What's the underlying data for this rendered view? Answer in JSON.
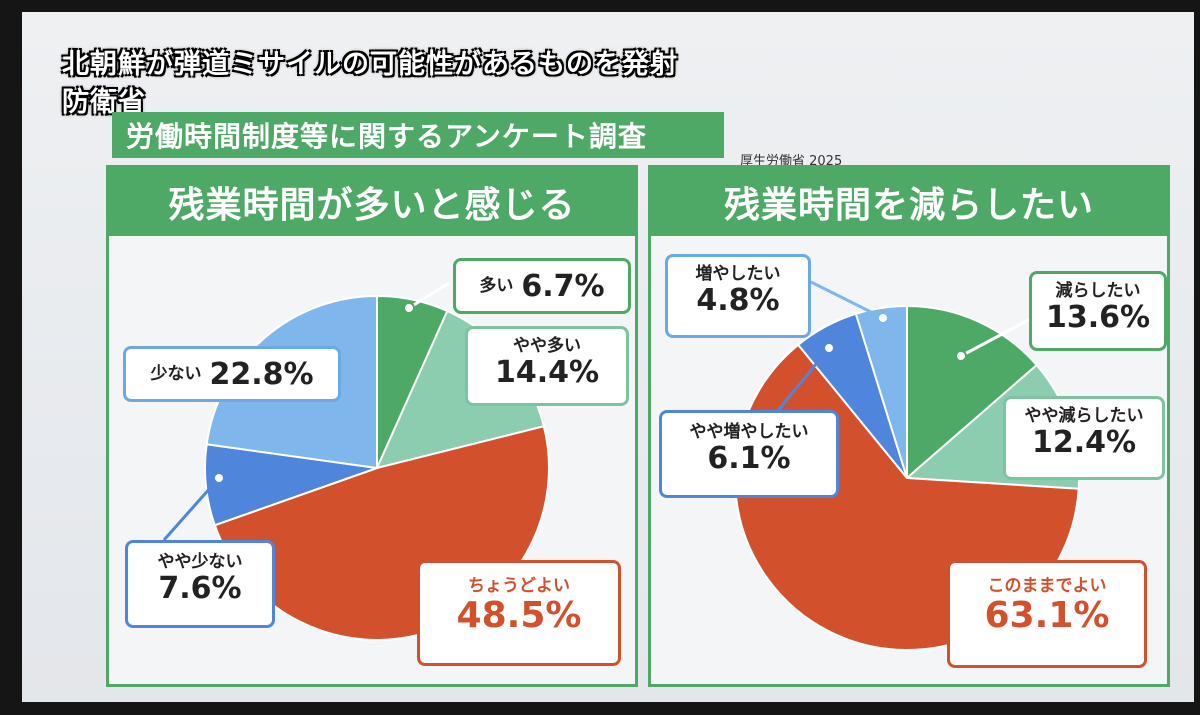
{
  "news": {
    "line1": "北朝鮮が弾道ミサイルの可能性があるものを発射",
    "line2": "防衛省"
  },
  "survey_title": "労働時間制度等に関するアンケート調査",
  "source": "厚生労働省 2025",
  "colors": {
    "green": "#4ea866",
    "light_green": "#8ccdb0",
    "red": "#d2502c",
    "light_blue": "#7fb6ec",
    "blue": "#4f86db"
  },
  "chart_data": [
    {
      "type": "pie",
      "title": "残業時間が多いと感じる",
      "slices": [
        {
          "label": "多い",
          "value": 6.7,
          "display": "6.7%",
          "color": "#4ea866"
        },
        {
          "label": "やや多い",
          "value": 14.4,
          "display": "14.4%",
          "color": "#8ccdb0"
        },
        {
          "label": "ちょうどよい",
          "value": 48.5,
          "display": "48.5%",
          "color": "#d2502c"
        },
        {
          "label": "やや少ない",
          "value": 7.6,
          "display": "7.6%",
          "color": "#4f86db"
        },
        {
          "label": "少ない",
          "value": 22.8,
          "display": "22.8%",
          "color": "#7fb6ec"
        }
      ]
    },
    {
      "type": "pie",
      "title": "残業時間を減らしたい",
      "slices": [
        {
          "label": "減らしたい",
          "value": 13.6,
          "display": "13.6%",
          "color": "#4ea866"
        },
        {
          "label": "やや減らしたい",
          "value": 12.4,
          "display": "12.4%",
          "color": "#8ccdb0"
        },
        {
          "label": "このままでよい",
          "value": 63.1,
          "display": "63.1%",
          "color": "#d2502c"
        },
        {
          "label": "やや増やしたい",
          "value": 6.1,
          "display": "6.1%",
          "color": "#4f86db"
        },
        {
          "label": "増やしたい",
          "value": 4.8,
          "display": "4.8%",
          "color": "#7fb6ec"
        }
      ]
    }
  ]
}
